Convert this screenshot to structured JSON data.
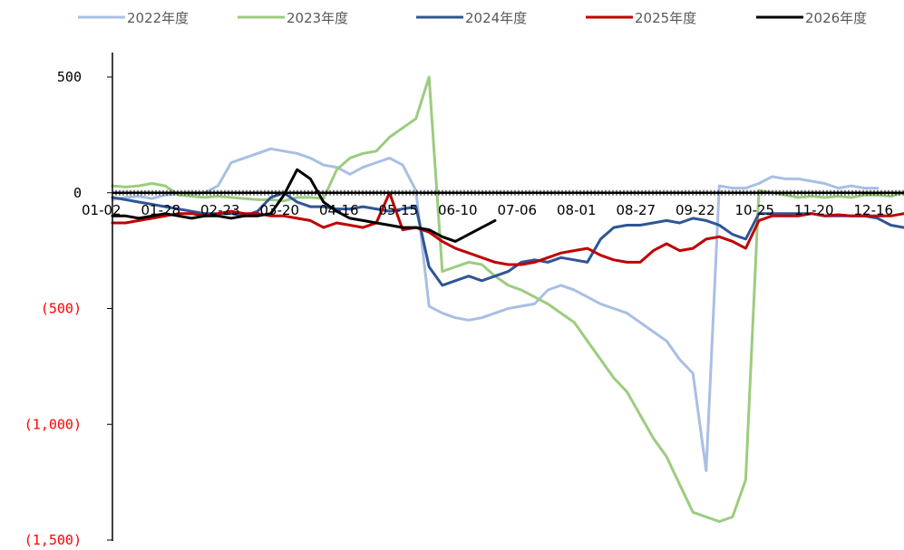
{
  "chart_data": {
    "type": "line",
    "title": "",
    "xlabel": "",
    "ylabel": "",
    "ylim": [
      -1500,
      500
    ],
    "y_ticks": [
      {
        "value": 500,
        "label": "500",
        "color": "#000000"
      },
      {
        "value": 0,
        "label": "0",
        "color": "#000000"
      },
      {
        "value": -500,
        "label": "(500)",
        "color": "#ff0000"
      },
      {
        "value": -1000,
        "label": "(1,000)",
        "color": "#ff0000"
      },
      {
        "value": -1500,
        "label": "(1,500)",
        "color": "#ff0000"
      }
    ],
    "x_ticks": [
      "01-02",
      "01-28",
      "02-23",
      "03-20",
      "04-16",
      "05-15",
      "06-10",
      "07-06",
      "08-01",
      "08-27",
      "09-22",
      "10-25",
      "11-20",
      "12-16"
    ],
    "legend_position": "top",
    "grid": false,
    "series": [
      {
        "name": "2022年度",
        "color": "#a9bfe3",
        "values": [
          -30,
          -20,
          -15,
          -25,
          -10,
          -5,
          -5,
          0,
          30,
          130,
          150,
          170,
          190,
          180,
          170,
          150,
          120,
          110,
          80,
          110,
          130,
          150,
          120,
          10,
          -490,
          -520,
          -540,
          -550,
          -540,
          -520,
          -500,
          -490,
          -480,
          -420,
          -400,
          -420,
          -450,
          -480,
          -500,
          -520,
          -560,
          -600,
          -640,
          -720,
          -780,
          -1200,
          30,
          20,
          20,
          40,
          70,
          60,
          60,
          50,
          40,
          20,
          30,
          20,
          20
        ]
      },
      {
        "name": "2023年度",
        "color": "#9ccc7f",
        "values": [
          30,
          25,
          30,
          40,
          30,
          -10,
          -15,
          -20,
          -15,
          -20,
          -25,
          -30,
          -30,
          -35,
          -20,
          -20,
          -25,
          100,
          150,
          170,
          180,
          240,
          280,
          320,
          500,
          -340,
          -320,
          -300,
          -310,
          -360,
          -400,
          -420,
          -450,
          -480,
          -520,
          -560,
          -640,
          -720,
          -800,
          -860,
          -960,
          -1060,
          -1140,
          -1260,
          -1380,
          -1400,
          -1420,
          -1400,
          -1240,
          10,
          0,
          -10,
          -20,
          -15,
          -20,
          -15,
          -20,
          -10,
          -10,
          -15,
          0
        ]
      },
      {
        "name": "2024年度",
        "color": "#2f5597",
        "values": [
          -20,
          -30,
          -40,
          -50,
          -60,
          -70,
          -80,
          -90,
          -90,
          -90,
          -100,
          -80,
          -20,
          0,
          -40,
          -60,
          -60,
          -70,
          -70,
          -60,
          -70,
          -80,
          -70,
          -60,
          -320,
          -400,
          -380,
          -360,
          -380,
          -360,
          -340,
          -300,
          -290,
          -300,
          -280,
          -290,
          -300,
          -200,
          -150,
          -140,
          -140,
          -130,
          -120,
          -130,
          -110,
          -120,
          -140,
          -180,
          -200,
          -90,
          -90,
          -90,
          -90,
          -90,
          -100,
          -100,
          -100,
          -100,
          -110,
          -140,
          -150
        ]
      },
      {
        "name": "2025年度",
        "color": "#c00000",
        "values": [
          -130,
          -130,
          -120,
          -110,
          -100,
          -90,
          -90,
          -100,
          -90,
          -80,
          -90,
          -90,
          -100,
          -100,
          -110,
          -120,
          -150,
          -130,
          -140,
          -150,
          -130,
          0,
          -160,
          -150,
          -170,
          -210,
          -240,
          -260,
          -280,
          -300,
          -310,
          -310,
          -300,
          -280,
          -260,
          -250,
          -240,
          -270,
          -290,
          -300,
          -300,
          -250,
          -220,
          -250,
          -240,
          -200,
          -190,
          -210,
          -240,
          -120,
          -100,
          -100,
          -100,
          -90,
          -100,
          -95,
          -100,
          -100,
          -100,
          -100,
          -90
        ]
      },
      {
        "name": "2026年度",
        "color": "#000000",
        "values": [
          -100,
          -100,
          -110,
          -100,
          -90,
          -100,
          -110,
          -100,
          -100,
          -110,
          -100,
          -100,
          -90,
          -10,
          100,
          60,
          -40,
          -80,
          -110,
          -120,
          -130,
          -140,
          -150,
          -150,
          -160,
          -190,
          -210,
          -180,
          -150,
          -120
        ]
      }
    ]
  }
}
